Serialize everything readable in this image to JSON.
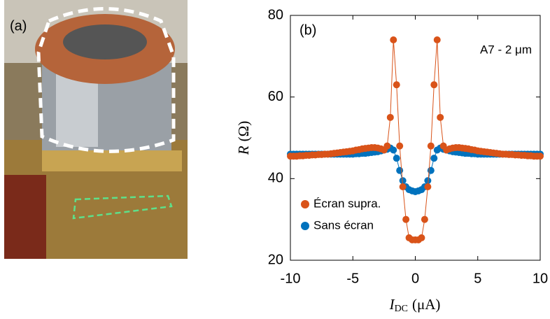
{
  "figure": {
    "photo_label": "(a)"
  },
  "chart_data": {
    "type": "scatter",
    "panel_label": "(b)",
    "annotation": "A7 - 2 μm",
    "x_label": [
      "I",
      "DC",
      "(μA)"
    ],
    "y_label": [
      "R",
      "(Ω)"
    ],
    "xlim": [
      -10,
      10
    ],
    "ylim": [
      20,
      80
    ],
    "xticks": [
      -10,
      -5,
      0,
      5,
      10
    ],
    "yticks": [
      20,
      40,
      60,
      80
    ],
    "legend": "lower left",
    "x": [
      -10,
      -9.75,
      -9.5,
      -9.25,
      -9,
      -8.75,
      -8.5,
      -8.25,
      -8,
      -7.75,
      -7.5,
      -7.25,
      -7,
      -6.75,
      -6.5,
      -6.25,
      -6,
      -5.75,
      -5.5,
      -5.25,
      -5,
      -4.75,
      -4.5,
      -4.25,
      -4,
      -3.75,
      -3.5,
      -3.25,
      -3,
      -2.75,
      -2.5,
      -2.25,
      -2,
      -1.75,
      -1.5,
      -1.25,
      -1,
      -0.75,
      -0.5,
      -0.25,
      0,
      0.25,
      0.5,
      0.75,
      1,
      1.25,
      1.5,
      1.75,
      2,
      2.25,
      2.5,
      2.75,
      3,
      3.25,
      3.5,
      3.75,
      4,
      4.25,
      4.5,
      4.75,
      5,
      5.25,
      5.5,
      5.75,
      6,
      6.25,
      6.5,
      6.75,
      7,
      7.25,
      7.5,
      7.75,
      8,
      8.25,
      8.5,
      8.75,
      9,
      9.25,
      9.5,
      9.75,
      10
    ],
    "series": [
      {
        "name": "Sans écran",
        "color": "#0072bd",
        "values": [
          46,
          46,
          46,
          46,
          46,
          46,
          46,
          46,
          46,
          46,
          46,
          46,
          46,
          46,
          46,
          46,
          46,
          46,
          46,
          46,
          46,
          46.1,
          46.1,
          46.2,
          46.2,
          46.3,
          46.4,
          46.5,
          46.6,
          46.8,
          47,
          47.2,
          47.5,
          47,
          45,
          42,
          39.5,
          38,
          37.3,
          37,
          36.8,
          37,
          37.3,
          38,
          39.5,
          42,
          45,
          47,
          47.5,
          47.2,
          47,
          46.8,
          46.6,
          46.5,
          46.4,
          46.3,
          46.2,
          46.2,
          46.1,
          46.1,
          46,
          46,
          46,
          46,
          46,
          46,
          46,
          46,
          46,
          46,
          46,
          46,
          46,
          46,
          46,
          46,
          46,
          46,
          46,
          46,
          46
        ]
      },
      {
        "name": "Écran supra.",
        "color": "#d95319",
        "values": [
          45.5,
          45.5,
          45.5,
          45.6,
          45.6,
          45.7,
          45.7,
          45.8,
          45.8,
          45.9,
          45.9,
          46,
          46,
          46.1,
          46.2,
          46.3,
          46.4,
          46.5,
          46.6,
          46.7,
          46.8,
          47,
          47.1,
          47.3,
          47.4,
          47.5,
          47.6,
          47.6,
          47.5,
          47.3,
          47,
          48,
          55,
          74,
          63,
          48,
          38,
          30,
          25.5,
          25,
          25,
          25,
          25.5,
          30,
          38,
          48,
          63,
          74,
          55,
          48,
          47,
          47.3,
          47.5,
          47.6,
          47.6,
          47.5,
          47.4,
          47.3,
          47.1,
          47,
          46.8,
          46.7,
          46.6,
          46.5,
          46.4,
          46.3,
          46.2,
          46.1,
          46,
          46,
          45.9,
          45.9,
          45.8,
          45.8,
          45.7,
          45.7,
          45.6,
          45.6,
          45.5,
          45.5,
          45.5
        ]
      }
    ]
  }
}
